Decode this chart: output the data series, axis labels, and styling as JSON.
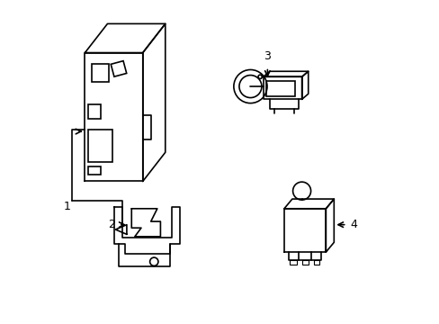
{
  "title": "",
  "background_color": "#ffffff",
  "line_color": "#000000",
  "line_width": 1.2,
  "figsize": [
    4.89,
    3.6
  ],
  "dpi": 100
}
